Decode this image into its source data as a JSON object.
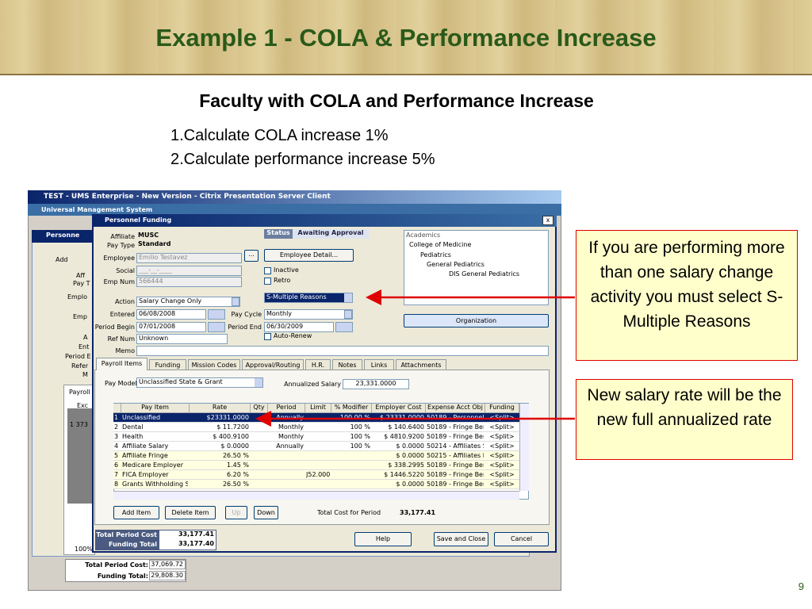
{
  "slide": {
    "title": "Example 1 - COLA & Performance Increase",
    "heading": "Faculty with COLA and Performance Increase",
    "steps": [
      "1.Calculate COLA increase 1%",
      "2.Calculate performance increase 5%"
    ],
    "callouts": [
      "If you are performing more than one salary change activity you must select S-Multiple Reasons",
      "New salary rate will be the new full annualized rate"
    ],
    "page_number": "9"
  },
  "window": {
    "title": "TEST - UMS Enterprise - New Version - Citrix Presentation Server Client",
    "app_title": "Universal Management System",
    "background_fragments": [
      "Personne",
      "Add",
      "Aff",
      "Pay T",
      "Emplo",
      "Emp",
      "A",
      "Ent",
      "Period E",
      "Refer",
      "M",
      "Payroll",
      "Exc",
      "1  373",
      "100%"
    ],
    "background_totals": [
      {
        "label": "Total Period Cost:",
        "value": "37,069.72"
      },
      {
        "label": "Funding Total:",
        "value": "29,808.30"
      }
    ]
  },
  "dialog": {
    "title": "Personnel Funding",
    "close": "x",
    "fields": [
      {
        "label": "Affiliate",
        "value": "MUSC"
      },
      {
        "label": "Pay Type",
        "value": "Standard"
      },
      {
        "label": "Employee",
        "value": "Emilio Testavez"
      },
      {
        "label": "Social",
        "value": "___-__-____"
      },
      {
        "label": "Emp Num",
        "value": "566444"
      },
      {
        "label": "Action",
        "value": "Salary Change Only"
      },
      {
        "label": "Entered",
        "value": "06/08/2008"
      },
      {
        "label": "Period Begin",
        "value": "07/01/2008"
      },
      {
        "label": "Ref Num",
        "value": "Unknown"
      },
      {
        "label": "Memo",
        "value": null
      },
      {
        "label": "Pay Cycle",
        "value": "Monthly"
      },
      {
        "label": "Period End",
        "value": "06/30/2009"
      }
    ],
    "employee_button": "...",
    "status": {
      "label": "Status",
      "value": "Awaiting Approval"
    },
    "employee_detail": "Employee Detail...",
    "checkboxes": [
      "Inactive",
      "Retro",
      "Auto-Renew"
    ],
    "reason": "S-Multiple Reasons",
    "tree": [
      "Academics",
      "College of Medicine",
      "Pediatrics",
      "General Pediatrics",
      "DIS General Pediatrics"
    ],
    "organization": "Organization",
    "tabs": [
      "Payroll Items",
      "Funding",
      "Mission Codes",
      "Approval/Routing",
      "H.R.",
      "Notes",
      "Links",
      "Attachments"
    ],
    "pay_model": {
      "label": "Pay Model",
      "value": "Unclassified State & Grant"
    },
    "annualized_salary": {
      "label": "Annualized Salary",
      "value": "23,331.0000"
    },
    "table": {
      "columns": [
        null,
        "Pay Item",
        "Rate",
        "Qty",
        "Period",
        "Limit",
        "% Modifier",
        "Employer Cost",
        "Expense Acct Obj",
        "Funding"
      ],
      "rows": [
        [
          "1",
          "Unclassified",
          "$23331.0000",
          null,
          "Annually",
          null,
          "100.00 %",
          "$ 23331.0000",
          "50189 - Personnel S",
          "<Split>"
        ],
        [
          "2",
          "Dental",
          "$ 11.7200",
          null,
          "Monthly",
          null,
          "100 %",
          "$ 140.6400",
          "50189 - Fringe Ber",
          "<Split>"
        ],
        [
          "3",
          "Health",
          "$ 400.9100",
          null,
          "Monthly",
          null,
          "100 %",
          "$ 4810.9200",
          "50189 - Fringe Ber",
          "<Split>"
        ],
        [
          "4",
          "Affiliate Salary",
          "$ 0.0000",
          null,
          "Annually",
          null,
          "100 %",
          "$ 0.0000",
          "50214 - Affiliates S",
          "<Split>"
        ],
        [
          "5",
          "Affiliate Fringe",
          "26.50 %",
          null,
          null,
          null,
          null,
          "$ 0.0000",
          "50215 - Affiliates F",
          "<Split>"
        ],
        [
          "6",
          "Medicare Employer",
          "1.45 %",
          null,
          null,
          null,
          null,
          "$ 338.2995",
          "50189 - Fringe Ber",
          "<Split>"
        ],
        [
          "7",
          "FICA Employer",
          "6.20 %",
          null,
          null,
          "J52.0000",
          null,
          "$ 1446.5220",
          "50189 - Fringe Ber",
          "<Split>"
        ],
        [
          "8",
          "Grants Withholding Staf",
          "26.50 %",
          null,
          null,
          null,
          null,
          "$ 0.0000",
          "50189 - Fringe Ber",
          "<Split>"
        ]
      ]
    },
    "item_buttons": [
      "Add Item",
      "Delete Item",
      "Up",
      "Down"
    ],
    "total_cost": {
      "label": "Total Cost for Period",
      "value": "33,177.41"
    },
    "totals": [
      {
        "label": "Total Period Cost",
        "value": "33,177.41"
      },
      {
        "label": "Funding Total",
        "value": "33,177.40"
      }
    ],
    "buttons": [
      "Help",
      "Save and Close",
      "Cancel"
    ]
  }
}
